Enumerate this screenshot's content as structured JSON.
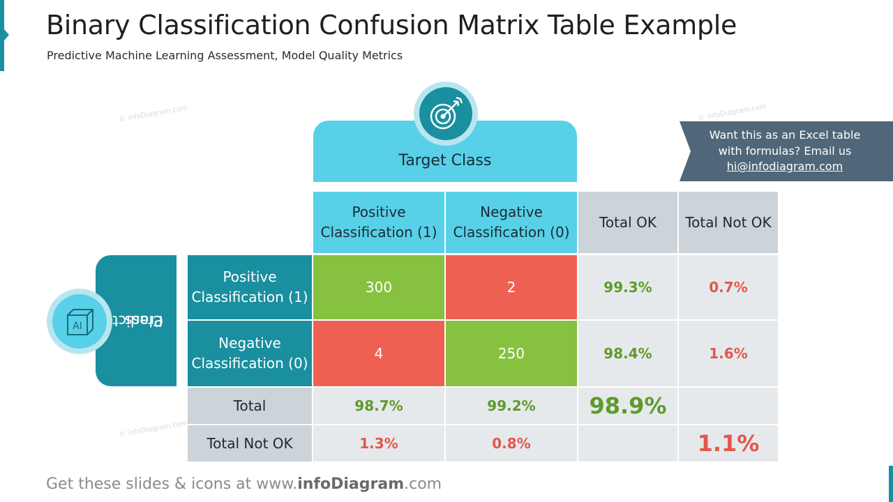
{
  "header": {
    "title": "Binary Classification Confusion Matrix Table Example",
    "subtitle": "Predictive Machine Learning Assessment, Model Quality Metrics"
  },
  "watermark": "© infoDiagram.com",
  "target_class": {
    "label": "Target Class",
    "icon": "target-arrow-icon"
  },
  "predicted_class": {
    "label_line1": "Predicted",
    "label_line2": "Class",
    "icon": "ai-cube-icon",
    "icon_text": "AI"
  },
  "callout": {
    "line1": "Want this as an Excel table",
    "line2": "with formulas? Email us",
    "email": "hi@infodiagram.com"
  },
  "table": {
    "col_headers": {
      "positive": "Positive Classification (1)",
      "negative": "Negative Classification (0)",
      "total_ok": "Total OK",
      "total_not_ok": "Total Not OK"
    },
    "row_headers": {
      "positive": "Positive Classification (1)",
      "negative": "Negative Classification (0)",
      "total": "Total",
      "total_not_ok": "Total Not OK"
    },
    "cells": {
      "pos_pos": "300",
      "pos_neg": "2",
      "pos_total_ok": "99.3%",
      "pos_total_not_ok": "0.7%",
      "neg_pos": "4",
      "neg_neg": "250",
      "neg_total_ok": "98.4%",
      "neg_total_not_ok": "1.6%",
      "total_pos": "98.7%",
      "total_neg": "99.2%",
      "total_ok": "98.9%",
      "notok_pos": "1.3%",
      "notok_neg": "0.8%",
      "notok_overall": "1.1%"
    },
    "colors": {
      "correct": "#86c13f",
      "error": "#ee6152",
      "header_cyan": "#58d0e8",
      "teal": "#1a8fa0",
      "gray": "#ccd3d9"
    }
  },
  "footer": {
    "prefix": "Get these slides & icons at www.",
    "brand": "infoDiagram",
    "suffix": ".com"
  }
}
